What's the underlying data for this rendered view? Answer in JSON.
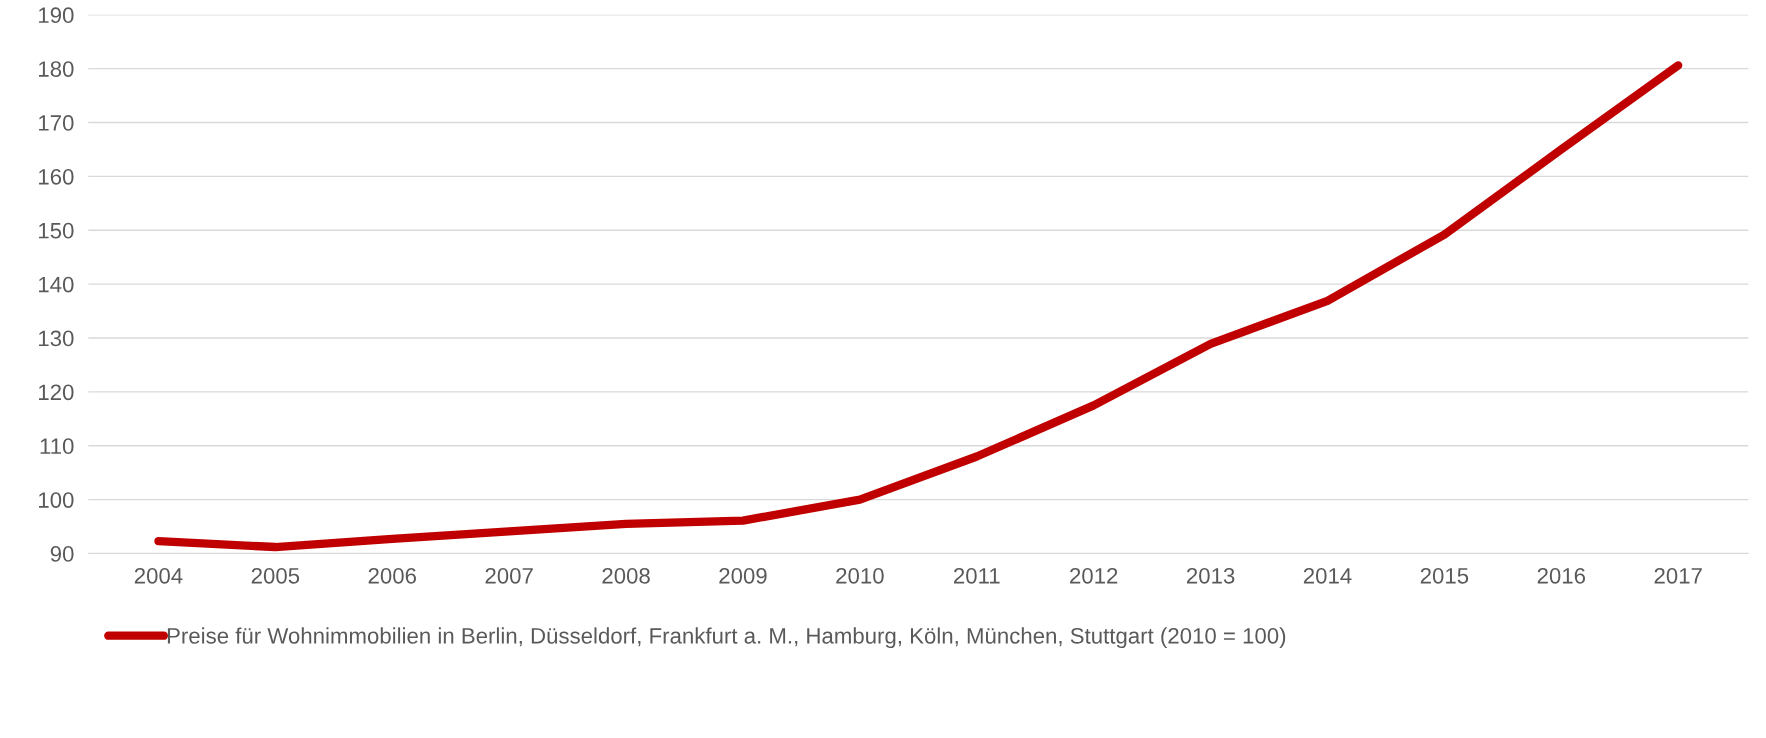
{
  "chart_data": {
    "type": "line",
    "categories": [
      "2004",
      "2005",
      "2006",
      "2007",
      "2008",
      "2009",
      "2010",
      "2011",
      "2012",
      "2013",
      "2014",
      "2015",
      "2016",
      "2017"
    ],
    "series": [
      {
        "name": "Preise für Wohnimmobilien in Berlin, Düsseldorf, Frankfurt a. M., Hamburg, Köln, München, Stuttgart (2010 = 100)",
        "color": "#c00000",
        "values": [
          92.3,
          91.2,
          92.7,
          94.1,
          95.5,
          96.1,
          100,
          108,
          117.5,
          128.9,
          136.9,
          149.2,
          165,
          180.6
        ]
      }
    ],
    "ylim": [
      90,
      190
    ],
    "yticks": [
      90,
      100,
      110,
      120,
      130,
      140,
      150,
      160,
      170,
      180,
      190
    ],
    "grid": "y",
    "legend": "bottom",
    "marker": "none",
    "line_style": "solid"
  }
}
